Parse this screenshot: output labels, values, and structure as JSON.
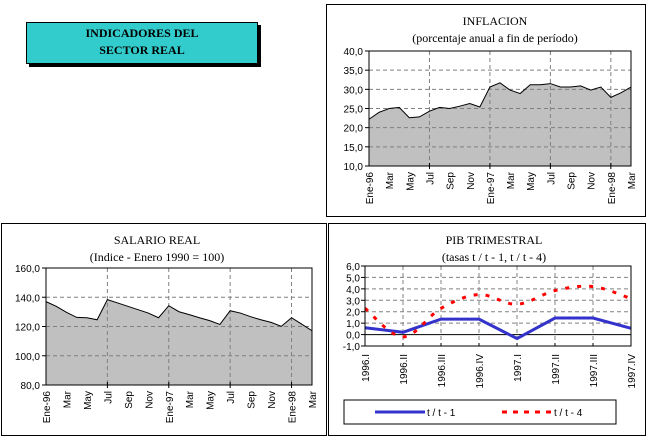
{
  "header": {
    "title_line1": "INDICADORES DEL",
    "title_line2": "SECTOR REAL",
    "accent_color": "#33cccc"
  },
  "chart_data": [
    {
      "id": "inflacion",
      "type": "area",
      "title": "INFLACION",
      "subtitle": "(porcentaje anual a fin de período)",
      "xlabel": "",
      "ylabel": "",
      "ylim": [
        10,
        40
      ],
      "yticks": [
        "10,0",
        "15,0",
        "20,0",
        "25,0",
        "30,0",
        "35,0",
        "40,0"
      ],
      "ytick_values": [
        10,
        15,
        20,
        25,
        30,
        35,
        40
      ],
      "xtick_labels": [
        "Ene-96",
        "Mar",
        "May",
        "Jul",
        "Sep",
        "Nov",
        "Ene-97",
        "Mar",
        "May",
        "Jul",
        "Sep",
        "Nov",
        "Ene-98",
        "Mar"
      ],
      "grid": "dashed",
      "fill_color": "#c0c0c0",
      "x": [
        "Ene-96",
        "Feb-96",
        "Mar-96",
        "Abr-96",
        "May-96",
        "Jun-96",
        "Jul-96",
        "Ago-96",
        "Sep-96",
        "Oct-96",
        "Nov-96",
        "Dic-96",
        "Ene-97",
        "Feb-97",
        "Mar-97",
        "Abr-97",
        "May-97",
        "Jun-97",
        "Jul-97",
        "Ago-97",
        "Sep-97",
        "Oct-97",
        "Nov-97",
        "Dic-97",
        "Ene-98",
        "Feb-98",
        "Mar-98"
      ],
      "values": [
        22.2,
        24.0,
        25.0,
        25.3,
        22.6,
        22.8,
        24.3,
        25.3,
        25.0,
        25.6,
        26.3,
        25.4,
        30.6,
        31.7,
        29.8,
        28.9,
        31.2,
        31.2,
        31.5,
        30.6,
        30.6,
        30.9,
        29.8,
        30.6,
        27.9,
        29.1,
        30.6
      ]
    },
    {
      "id": "salario",
      "type": "area",
      "title": "SALARIO REAL",
      "subtitle": "(Indice - Enero 1990 = 100)",
      "xlabel": "",
      "ylabel": "",
      "ylim": [
        80,
        160
      ],
      "yticks": [
        "80,0",
        "100,0",
        "120,0",
        "140,0",
        "160,0"
      ],
      "ytick_values": [
        80,
        100,
        120,
        140,
        160
      ],
      "xtick_labels": [
        "Ene-96",
        "Mar",
        "May",
        "Jul",
        "Sep",
        "Nov",
        "Ene-97",
        "Mar",
        "May",
        "Jul",
        "Sep",
        "Nov",
        "Ene-98",
        "Mar"
      ],
      "grid": "dashed",
      "fill_color": "#c0c0c0",
      "x": [
        "Ene-96",
        "Feb-96",
        "Mar-96",
        "Abr-96",
        "May-96",
        "Jun-96",
        "Jul-96",
        "Ago-96",
        "Sep-96",
        "Oct-96",
        "Nov-96",
        "Dic-96",
        "Ene-97",
        "Feb-97",
        "Mar-97",
        "Abr-97",
        "May-97",
        "Jun-97",
        "Jul-97",
        "Ago-97",
        "Sep-97",
        "Oct-97",
        "Nov-97",
        "Dic-97",
        "Ene-98",
        "Feb-98",
        "Mar-98"
      ],
      "values": [
        137.0,
        133.8,
        129.7,
        126.2,
        126.0,
        124.6,
        138.4,
        136.1,
        133.8,
        131.5,
        129.2,
        126.0,
        134.2,
        130.1,
        128.1,
        126.0,
        124.0,
        121.4,
        130.8,
        129.2,
        126.7,
        124.6,
        122.8,
        120.1,
        126.0,
        121.6,
        117.1
      ]
    },
    {
      "id": "pib",
      "type": "line",
      "title": "PIB TRIMESTRAL",
      "subtitle": "(tasas t / t - 1, t / t - 4)",
      "xlabel": "",
      "ylabel": "",
      "ylim": [
        -1,
        6
      ],
      "yticks": [
        "-1,0",
        "0,0",
        "1,0",
        "2,0",
        "3,0",
        "4,0",
        "5,0",
        "6,0"
      ],
      "ytick_values": [
        -1,
        0,
        1,
        2,
        3,
        4,
        5,
        6
      ],
      "categories": [
        "1996.I",
        "1996.II",
        "1996.III",
        "1996.IV",
        "1997.I",
        "1997.II",
        "1997.III",
        "1997.IV"
      ],
      "grid": "dashed",
      "legend_position": "bottom",
      "series": [
        {
          "name": "t / t - 1",
          "color": "#3333cc",
          "style": "solid",
          "values": [
            0.6,
            0.2,
            1.35,
            1.35,
            -0.35,
            1.45,
            1.45,
            0.55
          ]
        },
        {
          "name": "t / t - 4",
          "color": "#ff0000",
          "style": "dashed",
          "values": [
            2.3,
            -0.2,
            2.3,
            3.5,
            2.65,
            3.85,
            4.2,
            3.15
          ]
        }
      ]
    }
  ]
}
